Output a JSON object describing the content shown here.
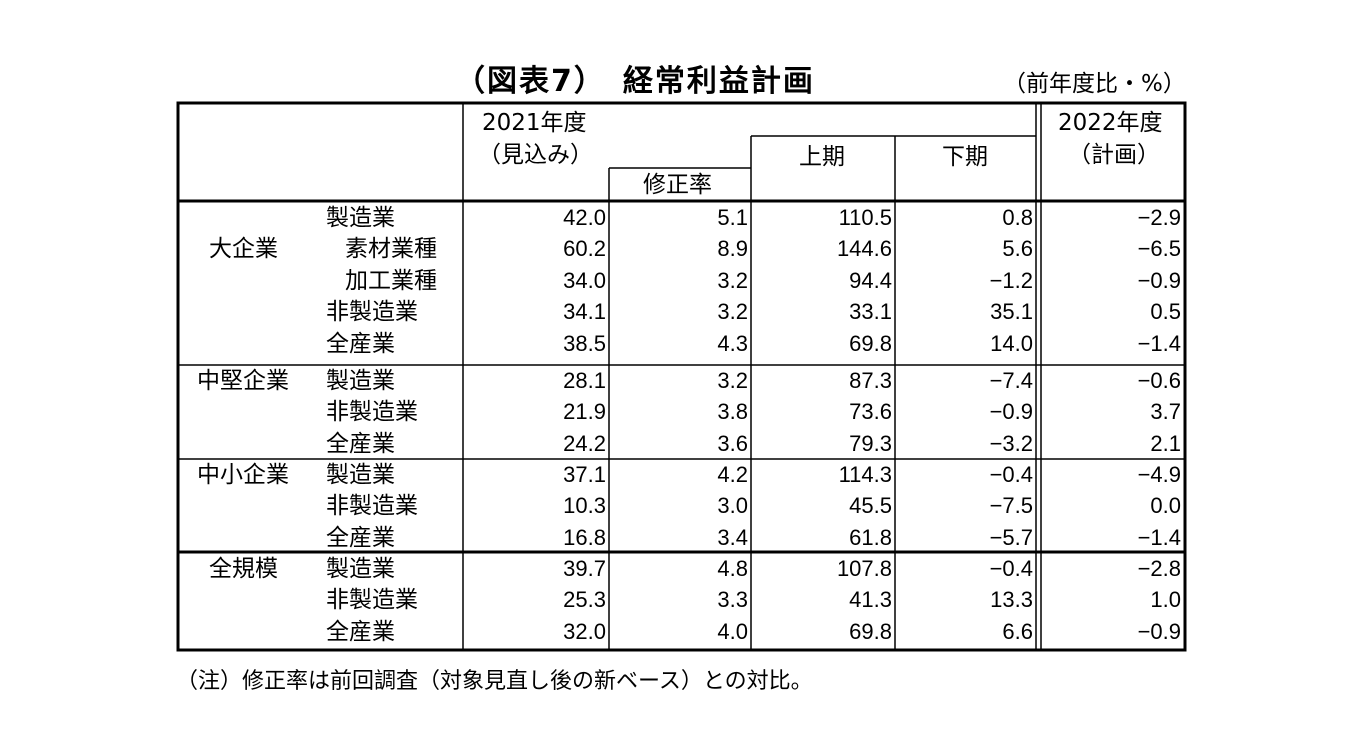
{
  "title": "（図表7）　経常利益計画",
  "unit": "（前年度比・%）",
  "note": "（注）修正率は前回調査（対象見直し後の新ベース）との対比。",
  "header": {
    "fy2021_line1": "2021年度",
    "fy2021_line2": "（見込み）",
    "revision": "修正率",
    "first_half": "上期",
    "second_half": "下期",
    "fy2022_line1": "2022年度",
    "fy2022_line2": "（計画）"
  },
  "groups": [
    {
      "name": "大企業",
      "rows": [
        {
          "label": "製造業",
          "indent": false,
          "v": [
            "42.0",
            "5.1",
            "110.5",
            "0.8",
            "−2.9"
          ]
        },
        {
          "label": "素材業種",
          "indent": true,
          "v": [
            "60.2",
            "8.9",
            "144.6",
            "5.6",
            "−6.5"
          ]
        },
        {
          "label": "加工業種",
          "indent": true,
          "v": [
            "34.0",
            "3.2",
            "94.4",
            "−1.2",
            "−0.9"
          ]
        },
        {
          "label": "非製造業",
          "indent": false,
          "v": [
            "34.1",
            "3.2",
            "33.1",
            "35.1",
            "0.5"
          ]
        },
        {
          "label": "全産業",
          "indent": false,
          "v": [
            "38.5",
            "4.3",
            "69.8",
            "14.0",
            "−1.4"
          ]
        }
      ]
    },
    {
      "name": "中堅企業",
      "rows": [
        {
          "label": "製造業",
          "indent": false,
          "v": [
            "28.1",
            "3.2",
            "87.3",
            "−7.4",
            "−0.6"
          ]
        },
        {
          "label": "非製造業",
          "indent": false,
          "v": [
            "21.9",
            "3.8",
            "73.6",
            "−0.9",
            "3.7"
          ]
        },
        {
          "label": "全産業",
          "indent": false,
          "v": [
            "24.2",
            "3.6",
            "79.3",
            "−3.2",
            "2.1"
          ]
        }
      ]
    },
    {
      "name": "中小企業",
      "rows": [
        {
          "label": "製造業",
          "indent": false,
          "v": [
            "37.1",
            "4.2",
            "114.3",
            "−0.4",
            "−4.9"
          ]
        },
        {
          "label": "非製造業",
          "indent": false,
          "v": [
            "10.3",
            "3.0",
            "45.5",
            "−7.5",
            "0.0"
          ]
        },
        {
          "label": "全産業",
          "indent": false,
          "v": [
            "16.8",
            "3.4",
            "61.8",
            "−5.7",
            "−1.4"
          ]
        }
      ]
    },
    {
      "name": "全規模",
      "rows": [
        {
          "label": "製造業",
          "indent": false,
          "v": [
            "39.7",
            "4.8",
            "107.8",
            "−0.4",
            "−2.8"
          ]
        },
        {
          "label": "非製造業",
          "indent": false,
          "v": [
            "25.3",
            "3.3",
            "41.3",
            "13.3",
            "1.0"
          ]
        },
        {
          "label": "全産業",
          "indent": false,
          "v": [
            "32.0",
            "4.0",
            "69.8",
            "6.6",
            "−0.9"
          ]
        }
      ]
    }
  ]
}
